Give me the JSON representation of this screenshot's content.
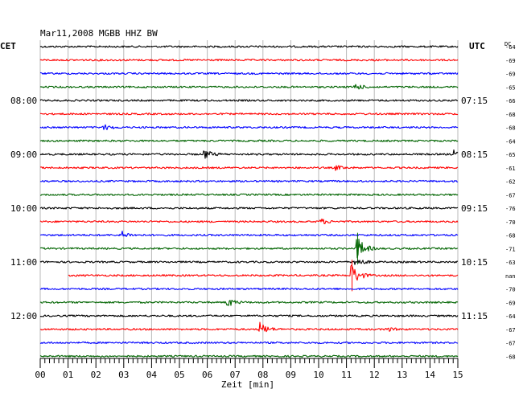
{
  "chart_data": {
    "type": "line",
    "title": "Mar11,2008   MGBB HHZ BW",
    "left_axis_label": "CET",
    "right_axis_label": "UTC",
    "offset_header": "DC",
    "xlabel": "Zeit [min]",
    "xlim": [
      0,
      15
    ],
    "x_ticks": [
      "00",
      "01",
      "02",
      "03",
      "04",
      "05",
      "06",
      "07",
      "08",
      "09",
      "10",
      "11",
      "12",
      "13",
      "14",
      "15"
    ],
    "left_time_labels": [
      {
        "row": 4,
        "text": "08:00"
      },
      {
        "row": 8,
        "text": "09:00"
      },
      {
        "row": 12,
        "text": "10:00"
      },
      {
        "row": 16,
        "text": "11:00"
      },
      {
        "row": 20,
        "text": "12:00"
      }
    ],
    "right_time_labels": [
      {
        "row": 4,
        "text": "07:15"
      },
      {
        "row": 8,
        "text": "08:15"
      },
      {
        "row": 12,
        "text": "09:15"
      },
      {
        "row": 16,
        "text": "10:15"
      },
      {
        "row": 20,
        "text": "11:15"
      }
    ],
    "trace_colors": [
      "#000000",
      "#ff0000",
      "#0000ff",
      "#006400"
    ],
    "traces": [
      {
        "row": 0,
        "offset": "-64",
        "events": []
      },
      {
        "row": 1,
        "offset": "-69",
        "events": []
      },
      {
        "row": 2,
        "offset": "-69",
        "events": []
      },
      {
        "row": 3,
        "offset": "-65",
        "events": [
          {
            "t": 11.3,
            "amp": 4
          }
        ]
      },
      {
        "row": 4,
        "offset": "-66",
        "events": []
      },
      {
        "row": 5,
        "offset": "-68",
        "events": []
      },
      {
        "row": 6,
        "offset": "-68",
        "events": [
          {
            "t": 2.3,
            "amp": 3
          }
        ]
      },
      {
        "row": 7,
        "offset": "-64",
        "events": []
      },
      {
        "row": 8,
        "offset": "-65",
        "events": [
          {
            "t": 5.9,
            "amp": 6
          },
          {
            "t": 14.9,
            "amp": 5
          }
        ]
      },
      {
        "row": 9,
        "offset": "-61",
        "events": [
          {
            "t": 10.6,
            "amp": 3
          }
        ]
      },
      {
        "row": 10,
        "offset": "-62",
        "events": []
      },
      {
        "row": 11,
        "offset": "-67",
        "events": []
      },
      {
        "row": 12,
        "offset": "-76",
        "events": []
      },
      {
        "row": 13,
        "offset": "-70",
        "events": [
          {
            "t": 10.1,
            "amp": 3
          }
        ]
      },
      {
        "row": 14,
        "offset": "-68",
        "events": [
          {
            "t": 2.9,
            "amp": 5
          }
        ]
      },
      {
        "row": 15,
        "offset": "-71",
        "events": [
          {
            "t": 11.4,
            "amp": 14
          }
        ]
      },
      {
        "row": 16,
        "offset": "-63",
        "events": [
          {
            "t": 11.3,
            "amp": 6
          }
        ]
      },
      {
        "row": 17,
        "offset": "nan",
        "events": [
          {
            "t": 11.2,
            "amp": 14
          }
        ]
      },
      {
        "row": 18,
        "offset": "-70",
        "events": []
      },
      {
        "row": 19,
        "offset": "-69",
        "events": [
          {
            "t": 6.7,
            "amp": 6
          }
        ]
      },
      {
        "row": 20,
        "offset": "-64",
        "events": []
      },
      {
        "row": 21,
        "offset": "-67",
        "events": [
          {
            "t": 7.9,
            "amp": 8
          },
          {
            "t": 12.4,
            "amp": 3
          }
        ]
      },
      {
        "row": 22,
        "offset": "-67",
        "events": []
      },
      {
        "row": 23,
        "offset": "-68",
        "events": []
      }
    ],
    "gaps": [
      {
        "row": 17,
        "t_start": 0,
        "t_end": 1.0
      }
    ],
    "grid": true
  }
}
